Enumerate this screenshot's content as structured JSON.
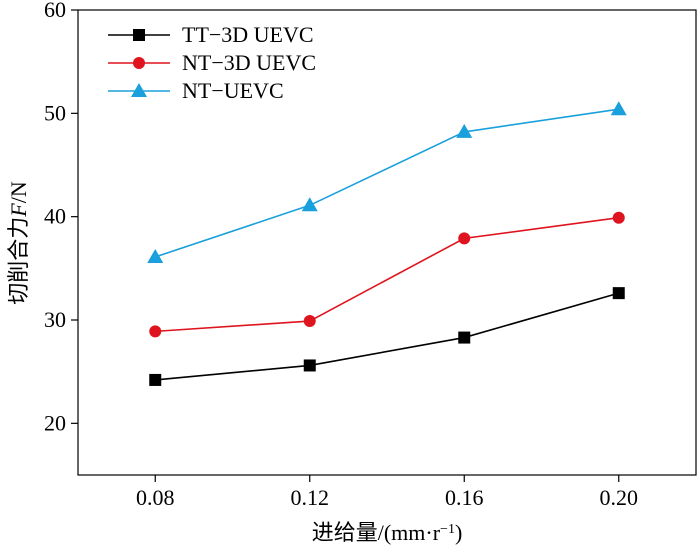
{
  "chart_data": {
    "type": "line",
    "x": [
      0.08,
      0.12,
      0.16,
      0.2
    ],
    "x_tick_labels": [
      "0.08",
      "0.12",
      "0.16",
      "0.20"
    ],
    "y_ticks": [
      20,
      30,
      40,
      50,
      60
    ],
    "xlim": [
      0.06,
      0.22
    ],
    "ylim": [
      15,
      60
    ],
    "xlabel": "进给量/(mm·r⁻¹)",
    "ylabel": "切削合力F/N",
    "grid": false,
    "legend_position": "top-left",
    "series": [
      {
        "name": "TT−3D UEVC",
        "color": "#000000",
        "marker": "square",
        "values": [
          24.2,
          25.6,
          28.3,
          32.6
        ]
      },
      {
        "name": "NT−3D UEVC",
        "color": "#e0141e",
        "marker": "circle",
        "values": [
          28.9,
          29.9,
          37.9,
          39.9
        ]
      },
      {
        "name": "NT−UEVC",
        "color": "#1aa0dc",
        "marker": "triangle",
        "values": [
          36.1,
          41.1,
          48.2,
          50.4
        ]
      }
    ]
  }
}
